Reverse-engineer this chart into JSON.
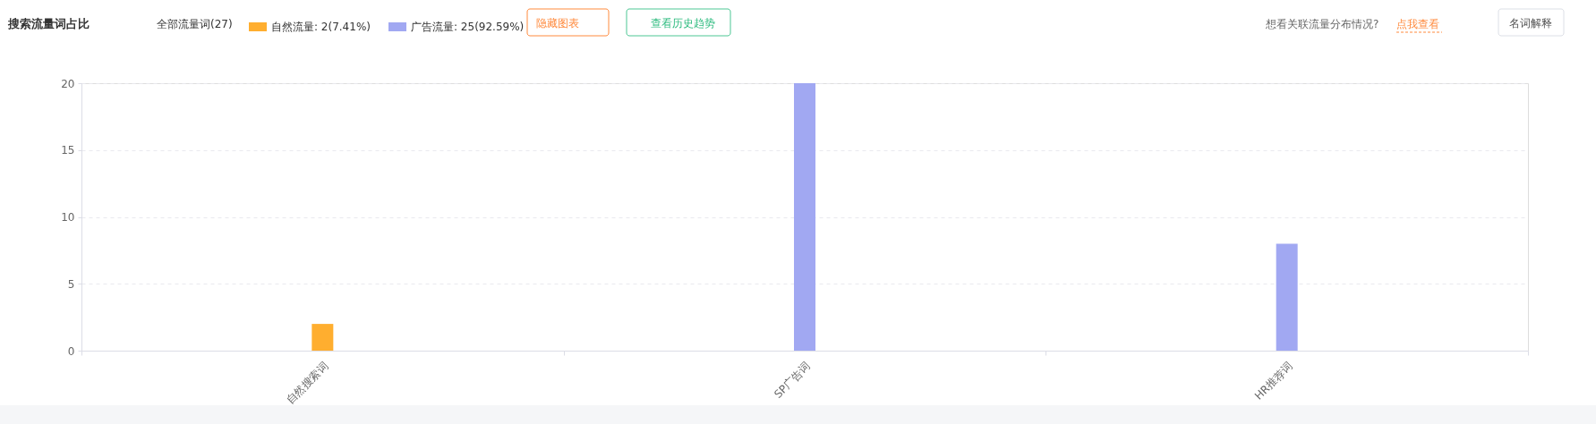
{
  "chart_data": {
    "type": "bar",
    "title": "搜索流量词占比",
    "categories": [
      "自然搜索词",
      "SP广告词",
      "HR推荐词"
    ],
    "series": [
      {
        "name": "自然流量: 2(7.41%)",
        "color": "#ffae2f",
        "values": [
          2,
          null,
          null
        ]
      },
      {
        "name": "广告流量: 25(92.59%)",
        "color": "#a1a8f2",
        "values": [
          null,
          20,
          8
        ]
      }
    ],
    "ylim": [
      0,
      20
    ],
    "yticks": [
      0,
      5,
      10,
      15,
      20
    ],
    "grid": "y",
    "legend": "top",
    "annotations": [
      "全部流量词(27)",
      "隐藏图表",
      "查看历史趋势",
      "想看关联流量分布情况?",
      "点我查看",
      "名词解释"
    ]
  }
}
